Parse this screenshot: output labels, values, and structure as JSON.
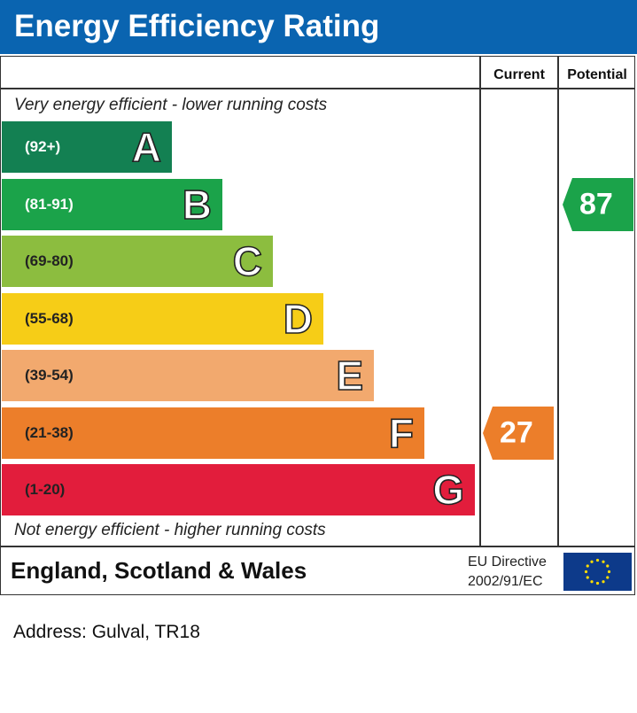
{
  "header": {
    "title": "Energy Efficiency Rating"
  },
  "columns": {
    "current": "Current",
    "potential": "Potential"
  },
  "notes": {
    "top": "Very energy efficient - lower running costs",
    "bottom": "Not energy efficient - higher running costs"
  },
  "chart_data": {
    "type": "bar",
    "title": "Energy Efficiency Rating",
    "bands": [
      {
        "letter": "A",
        "range": "(92+)",
        "color": "#138052",
        "range_color": "#ffffff"
      },
      {
        "letter": "B",
        "range": "(81-91)",
        "color": "#1ba34a",
        "range_color": "#ffffff"
      },
      {
        "letter": "C",
        "range": "(69-80)",
        "color": "#8cbd3f",
        "range_color": "#222222"
      },
      {
        "letter": "D",
        "range": "(55-68)",
        "color": "#f6cd17",
        "range_color": "#222222"
      },
      {
        "letter": "E",
        "range": "(39-54)",
        "color": "#f2a96e",
        "range_color": "#222222"
      },
      {
        "letter": "F",
        "range": "(21-38)",
        "color": "#ec7e2a",
        "range_color": "#222222"
      },
      {
        "letter": "G",
        "range": "(1-20)",
        "color": "#e21d3c",
        "range_color": "#222222"
      }
    ],
    "current": {
      "value": "27",
      "band": "F",
      "color": "#ec7e2a"
    },
    "potential": {
      "value": "87",
      "band": "B",
      "color": "#1ba34a"
    }
  },
  "footer": {
    "region": "England, Scotland & Wales",
    "directive_line1": "EU Directive",
    "directive_line2": "2002/91/EC",
    "flag_icon": "eu-flag-icon"
  },
  "address": "Address: Gulval, TR18"
}
